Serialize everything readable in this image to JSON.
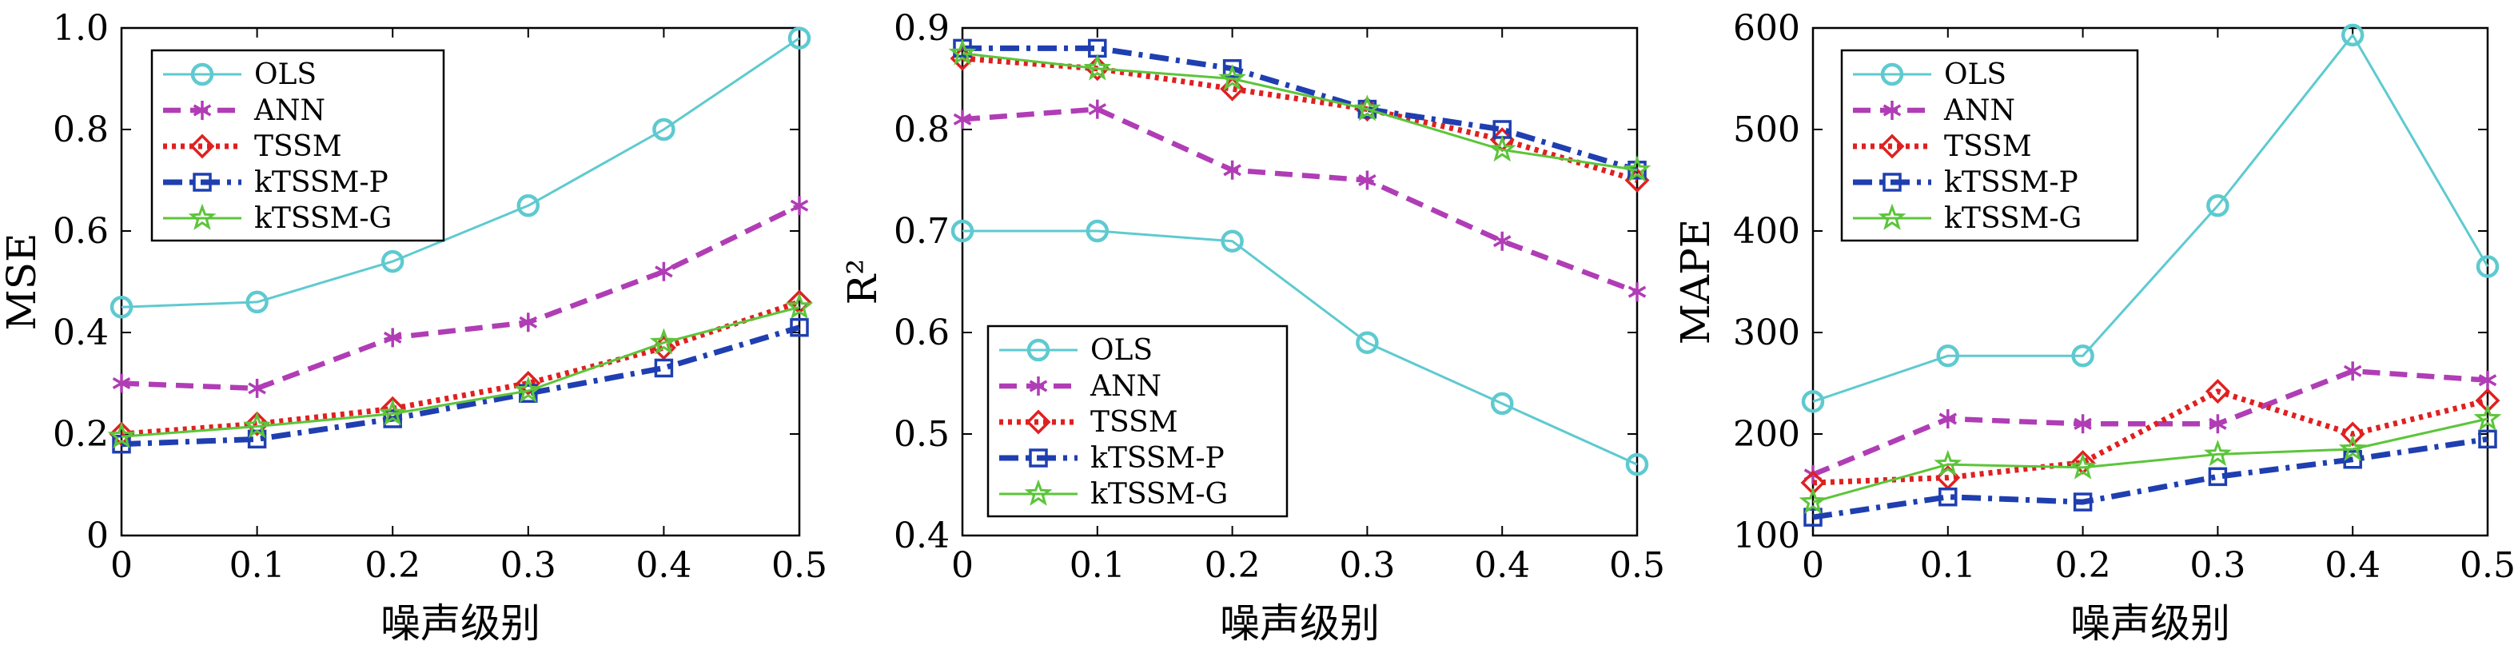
{
  "colors": {
    "OLS": "#5ecad0",
    "ANN": "#b03db5",
    "TSSM": "#e02020",
    "kTSSM-P": "#1f3fb0",
    "kTSSM-G": "#5cc53a"
  },
  "chart_data": [
    {
      "type": "line",
      "xlabel": "噪声级别",
      "ylabel": "MSE",
      "x": [
        0,
        0.1,
        0.2,
        0.3,
        0.4,
        0.5
      ],
      "xticks": [
        "0",
        "0.1",
        "0.2",
        "0.3",
        "0.4",
        "0.5"
      ],
      "xlim": [
        0,
        0.5
      ],
      "ylim": [
        0,
        1.0
      ],
      "yticks": [
        "0",
        "0.2",
        "0.4",
        "0.6",
        "0.8",
        "1.0"
      ],
      "grid": false,
      "legend_position": "top-left",
      "series": [
        {
          "name": "OLS",
          "values": [
            0.45,
            0.46,
            0.54,
            0.65,
            0.8,
            0.98
          ]
        },
        {
          "name": "ANN",
          "values": [
            0.3,
            0.29,
            0.39,
            0.42,
            0.52,
            0.65
          ]
        },
        {
          "name": "TSSM",
          "values": [
            0.2,
            0.22,
            0.25,
            0.3,
            0.37,
            0.46
          ]
        },
        {
          "name": "kTSSM-P",
          "values": [
            0.18,
            0.19,
            0.23,
            0.28,
            0.33,
            0.41
          ]
        },
        {
          "name": "kTSSM-G",
          "values": [
            0.195,
            0.215,
            0.24,
            0.285,
            0.38,
            0.45
          ]
        }
      ]
    },
    {
      "type": "line",
      "xlabel": "噪声级别",
      "ylabel": "R²",
      "x": [
        0,
        0.1,
        0.2,
        0.3,
        0.4,
        0.5
      ],
      "xticks": [
        "0",
        "0.1",
        "0.2",
        "0.3",
        "0.4",
        "0.5"
      ],
      "xlim": [
        0,
        0.5
      ],
      "ylim": [
        0.4,
        0.9
      ],
      "yticks": [
        "0.4",
        "0.5",
        "0.6",
        "0.7",
        "0.8",
        "0.9"
      ],
      "grid": false,
      "legend_position": "bottom-left",
      "series": [
        {
          "name": "OLS",
          "values": [
            0.7,
            0.7,
            0.69,
            0.59,
            0.53,
            0.47
          ]
        },
        {
          "name": "ANN",
          "values": [
            0.81,
            0.82,
            0.76,
            0.75,
            0.69,
            0.64
          ]
        },
        {
          "name": "TSSM",
          "values": [
            0.87,
            0.86,
            0.84,
            0.82,
            0.79,
            0.75
          ]
        },
        {
          "name": "kTSSM-P",
          "values": [
            0.88,
            0.88,
            0.86,
            0.82,
            0.8,
            0.76
          ]
        },
        {
          "name": "kTSSM-G",
          "values": [
            0.875,
            0.86,
            0.85,
            0.82,
            0.78,
            0.76
          ]
        }
      ]
    },
    {
      "type": "line",
      "xlabel": "噪声级别",
      "ylabel": "MAPE",
      "x": [
        0,
        0.1,
        0.2,
        0.3,
        0.4,
        0.5
      ],
      "xticks": [
        "0",
        "0.1",
        "0.2",
        "0.3",
        "0.4",
        "0.5"
      ],
      "xlim": [
        0,
        0.5
      ],
      "ylim": [
        100,
        600
      ],
      "yticks": [
        "100",
        "200",
        "300",
        "400",
        "500",
        "600"
      ],
      "grid": false,
      "legend_position": "top-left",
      "series": [
        {
          "name": "OLS",
          "values": [
            232,
            277,
            277,
            425,
            593,
            365
          ]
        },
        {
          "name": "ANN",
          "values": [
            160,
            215,
            210,
            210,
            262,
            253
          ]
        },
        {
          "name": "TSSM",
          "values": [
            152,
            157,
            172,
            242,
            200,
            233
          ]
        },
        {
          "name": "kTSSM-P",
          "values": [
            118,
            138,
            133,
            158,
            175,
            195
          ]
        },
        {
          "name": "kTSSM-G",
          "values": [
            133,
            170,
            167,
            180,
            185,
            215
          ]
        }
      ]
    }
  ]
}
